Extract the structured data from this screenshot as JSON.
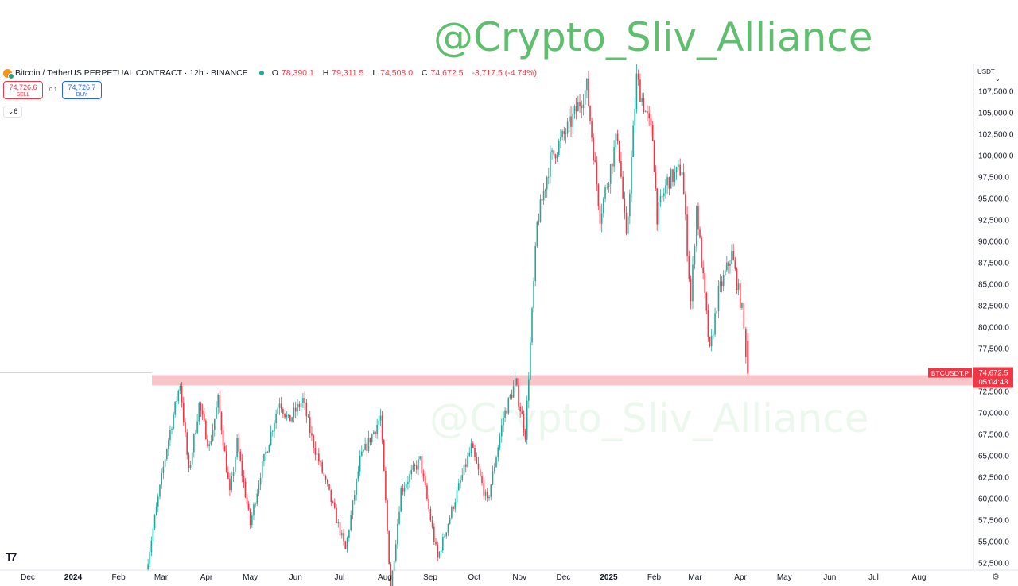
{
  "watermark": "@Crypto_Sliv_Alliance",
  "header": {
    "symbol": "Bitcoin / TetherUS PERPETUAL CONTRACT · 12h · BINANCE",
    "o_label": "O",
    "o": "78,390.1",
    "h_label": "H",
    "h": "79,311.5",
    "l_label": "L",
    "l": "74,508.0",
    "c_label": "C",
    "c": "74,672.5",
    "change": "-3,717.5 (-4.74%)"
  },
  "trade": {
    "sell_price": "74,726.6",
    "sell_label": "SELL",
    "spread": "0.1",
    "buy_price": "74,726.7",
    "buy_label": "BUY"
  },
  "indicator_toggle": "6",
  "currency": "USDT",
  "price_tag": {
    "ticker": "BTCUSDT.P",
    "price": "74,672.5",
    "countdown": "05:04:43"
  },
  "colors": {
    "up": "#26a69a",
    "down": "#f23645",
    "zone": "#f8c6c9",
    "watermark": "#5fbf6e"
  },
  "chart_data": {
    "type": "candlestick",
    "interval": "12h",
    "y_ticks": [
      52500,
      55000,
      57500,
      60000,
      62500,
      65000,
      67500,
      70000,
      72500,
      75000,
      77500,
      80000,
      82500,
      85000,
      87500,
      90000,
      92500,
      95000,
      97500,
      100000,
      102500,
      105000,
      107500
    ],
    "y_tick_labels": [
      "52,500.0",
      "55,000.0",
      "57,500.0",
      "60,000.0",
      "62,500.0",
      "65,000.0",
      "67,500.0",
      "70,000.0",
      "72,500.0",
      "75,000.0",
      "77,500.0",
      "80,000.0",
      "82,500.0",
      "85,000.0",
      "87,500.0",
      "90,000.0",
      "92,500.0",
      "95,000.0",
      "97,500.0",
      "100,000.0",
      "102,500.0",
      "105,000.0",
      "107,500.0"
    ],
    "x_ticks": [
      "Dec",
      "2024",
      "Feb",
      "Mar",
      "Apr",
      "May",
      "Jun",
      "Jul",
      "Aug",
      "Sep",
      "Oct",
      "Nov",
      "Dec",
      "2025",
      "Feb",
      "Mar",
      "Apr",
      "May",
      "Jun",
      "Jul",
      "Aug"
    ],
    "x_tick_bold": [
      false,
      true,
      false,
      false,
      false,
      false,
      false,
      false,
      false,
      false,
      false,
      false,
      false,
      true,
      false,
      false,
      false,
      false,
      false,
      false,
      false
    ],
    "price_path": [
      [
        "2024-02-20",
        51800
      ],
      [
        "2024-02-28",
        60000
      ],
      [
        "2024-03-05",
        66000
      ],
      [
        "2024-03-14",
        73500
      ],
      [
        "2024-03-20",
        63000
      ],
      [
        "2024-03-27",
        71000
      ],
      [
        "2024-04-03",
        66000
      ],
      [
        "2024-04-09",
        71500
      ],
      [
        "2024-04-17",
        60500
      ],
      [
        "2024-04-22",
        66500
      ],
      [
        "2024-05-01",
        57000
      ],
      [
        "2024-05-08",
        63000
      ],
      [
        "2024-05-21",
        71500
      ],
      [
        "2024-05-27",
        69000
      ],
      [
        "2024-06-06",
        71500
      ],
      [
        "2024-06-12",
        67000
      ],
      [
        "2024-06-24",
        60500
      ],
      [
        "2024-07-05",
        54000
      ],
      [
        "2024-07-15",
        64500
      ],
      [
        "2024-07-29",
        69500
      ],
      [
        "2024-08-05",
        49500
      ],
      [
        "2024-08-12",
        61000
      ],
      [
        "2024-08-25",
        64500
      ],
      [
        "2024-09-06",
        53000
      ],
      [
        "2024-09-18",
        60000
      ],
      [
        "2024-09-29",
        66000
      ],
      [
        "2024-10-10",
        59500
      ],
      [
        "2024-10-21",
        69500
      ],
      [
        "2024-10-29",
        73500
      ],
      [
        "2024-11-05",
        67500
      ],
      [
        "2024-11-13",
        92000
      ],
      [
        "2024-11-22",
        99500
      ],
      [
        "2024-12-05",
        103500
      ],
      [
        "2024-12-17",
        108000
      ],
      [
        "2024-12-26",
        93000
      ],
      [
        "2025-01-07",
        102500
      ],
      [
        "2025-01-13",
        90000
      ],
      [
        "2025-01-20",
        109000
      ],
      [
        "2025-01-31",
        102000
      ],
      [
        "2025-02-03",
        93000
      ],
      [
        "2025-02-10",
        97000
      ],
      [
        "2025-02-20",
        98500
      ],
      [
        "2025-02-26",
        83000
      ],
      [
        "2025-03-02",
        94000
      ],
      [
        "2025-03-11",
        77000
      ],
      [
        "2025-03-17",
        84000
      ],
      [
        "2025-03-26",
        88500
      ],
      [
        "2025-04-02",
        82000
      ],
      [
        "2025-04-06",
        74672.5
      ]
    ],
    "support_zone": [
      73200,
      74400
    ],
    "last_price": 74672.5
  }
}
